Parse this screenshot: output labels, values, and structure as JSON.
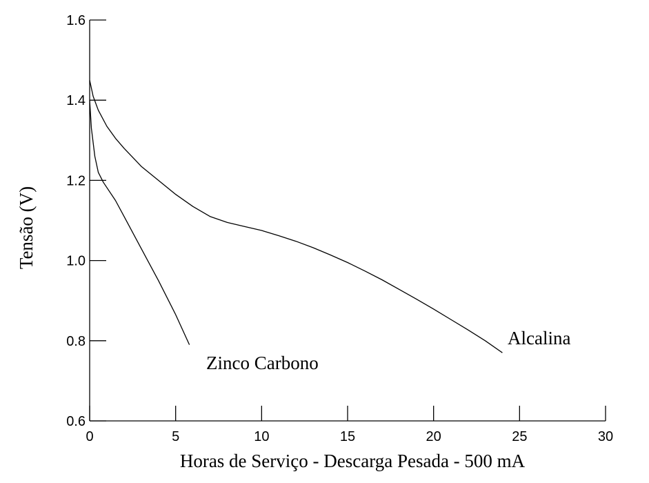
{
  "chart_data": {
    "type": "line",
    "title": "",
    "xlabel": "Horas de Serviço - Descarga Pesada - 500 mA",
    "ylabel": "Tensão (V)",
    "xlim": [
      0,
      30
    ],
    "ylim": [
      0.6,
      1.6
    ],
    "x_ticks": [
      0,
      5,
      10,
      15,
      20,
      25,
      30
    ],
    "x_tick_labels": [
      "0",
      "5",
      "10",
      "15",
      "20",
      "25",
      "30"
    ],
    "y_ticks": [
      0.6,
      0.8,
      1.0,
      1.2,
      1.4,
      1.6
    ],
    "y_tick_labels": [
      "0.6",
      "0.8",
      "1.0",
      "1.2",
      "1.4",
      "1.6"
    ],
    "grid": false,
    "series": [
      {
        "name": "Alcalina",
        "x": [
          0,
          0.2,
          0.5,
          1,
          1.5,
          2,
          3,
          4,
          5,
          6,
          7,
          8,
          9,
          10,
          11,
          12,
          13,
          14,
          15,
          16,
          17,
          18,
          19,
          20,
          21,
          22,
          23,
          24
        ],
        "y": [
          1.45,
          1.41,
          1.375,
          1.335,
          1.305,
          1.28,
          1.235,
          1.2,
          1.165,
          1.135,
          1.11,
          1.095,
          1.085,
          1.075,
          1.062,
          1.048,
          1.032,
          1.014,
          0.995,
          0.974,
          0.952,
          0.928,
          0.904,
          0.879,
          0.853,
          0.827,
          0.8,
          0.77
        ]
      },
      {
        "name": "Zinco Carbono",
        "x": [
          0,
          0.1,
          0.3,
          0.5,
          0.8,
          1.5,
          2,
          3,
          4,
          5,
          5.8
        ],
        "y": [
          1.4,
          1.33,
          1.26,
          1.22,
          1.195,
          1.15,
          1.11,
          1.03,
          0.95,
          0.865,
          0.79
        ]
      }
    ],
    "annotations": [
      {
        "text": "Zinco Carbono",
        "series": "Zinco Carbono"
      },
      {
        "text": "Alcalina",
        "series": "Alcalina"
      }
    ]
  }
}
